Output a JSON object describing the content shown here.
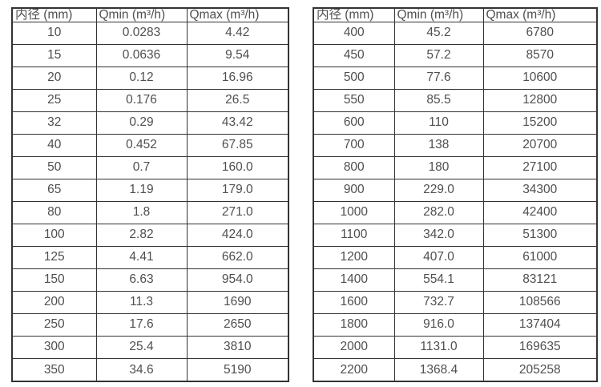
{
  "colors": {
    "background": "#ffffff",
    "grid_border": "#333333",
    "text": "#4f4f4f"
  },
  "tables": [
    {
      "name": "flow-range-table-dn10-dn350",
      "headers": [
        "内径 (mm)",
        "Qmin (m³/h)",
        "Qmax (m³/h)"
      ],
      "rows": [
        [
          "10",
          "0.0283",
          "4.42"
        ],
        [
          "15",
          "0.0636",
          "9.54"
        ],
        [
          "20",
          "0.12",
          "16.96"
        ],
        [
          "25",
          "0.176",
          "26.5"
        ],
        [
          "32",
          "0.29",
          "43.42"
        ],
        [
          "40",
          "0.452",
          "67.85"
        ],
        [
          "50",
          "0.7",
          "160.0"
        ],
        [
          "65",
          "1.19",
          "179.0"
        ],
        [
          "80",
          "1.8",
          "271.0"
        ],
        [
          "100",
          "2.82",
          "424.0"
        ],
        [
          "125",
          "4.41",
          "662.0"
        ],
        [
          "150",
          "6.63",
          "954.0"
        ],
        [
          "200",
          "11.3",
          "1690"
        ],
        [
          "250",
          "17.6",
          "2650"
        ],
        [
          "300",
          "25.4",
          "3810"
        ],
        [
          "350",
          "34.6",
          "5190"
        ]
      ]
    },
    {
      "name": "flow-range-table-dn400-dn2200",
      "headers": [
        "内径 (mm)",
        "Qmin (m³/h)",
        "Qmax (m³/h)"
      ],
      "rows": [
        [
          "400",
          "45.2",
          "6780"
        ],
        [
          "450",
          "57.2",
          "8570"
        ],
        [
          "500",
          "77.6",
          "10600"
        ],
        [
          "550",
          "85.5",
          "12800"
        ],
        [
          "600",
          "110",
          "15200"
        ],
        [
          "700",
          "138",
          "20700"
        ],
        [
          "800",
          "180",
          "27100"
        ],
        [
          "900",
          "229.0",
          "34300"
        ],
        [
          "1000",
          "282.0",
          "42400"
        ],
        [
          "1100",
          "342.0",
          "51300"
        ],
        [
          "1200",
          "407.0",
          "61000"
        ],
        [
          "1400",
          "554.1",
          "83121"
        ],
        [
          "1600",
          "732.7",
          "108566"
        ],
        [
          "1800",
          "916.0",
          "137404"
        ],
        [
          "2000",
          "1131.0",
          "169635"
        ],
        [
          "2200",
          "1368.4",
          "205258"
        ]
      ]
    }
  ]
}
